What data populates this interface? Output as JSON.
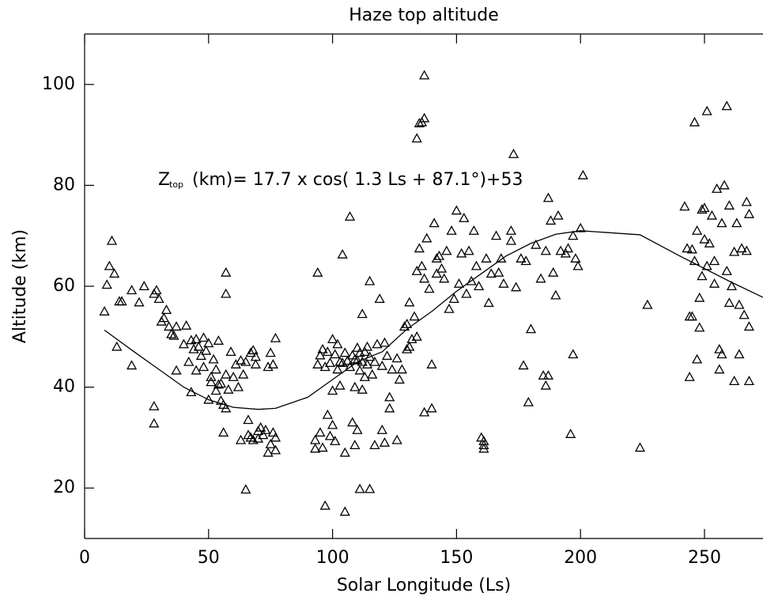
{
  "chart_data": {
    "type": "scatter",
    "title": "Haze top altitude",
    "xlabel": "Solar Longitude (Ls)",
    "ylabel": "Altitude (km)",
    "annotation": {
      "symbol": "Z",
      "subscript": "top",
      "text": " (km)= 17.7 x cos( 1.3 Ls + 87.1°)+53"
    },
    "color": "#000000",
    "xlim": [
      0,
      273.6
    ],
    "ylim": [
      10,
      110
    ],
    "xticks": [
      0,
      50,
      100,
      150,
      200,
      250
    ],
    "yticks": [
      20,
      40,
      60,
      80,
      100
    ],
    "x": [
      8,
      9,
      10,
      11,
      12,
      13,
      14,
      15,
      19,
      19,
      22,
      24,
      28,
      28,
      28,
      29,
      30,
      31,
      32,
      33,
      34,
      35,
      36,
      37,
      37,
      40,
      41,
      42,
      43,
      43,
      44,
      45,
      45,
      46,
      47,
      48,
      48,
      49,
      50,
      50,
      51,
      51,
      52,
      53,
      53,
      54,
      54,
      55,
      55,
      56,
      56,
      57,
      57,
      57,
      57,
      58,
      59,
      60,
      61,
      62,
      63,
      63,
      64,
      65,
      65,
      66,
      66,
      67,
      67,
      68,
      68,
      69,
      69,
      70,
      70,
      71,
      72,
      73,
      74,
      74,
      75,
      75,
      76,
      76,
      77,
      77,
      77,
      93,
      93,
      94,
      94,
      95,
      95,
      96,
      96,
      97,
      97,
      98,
      98,
      99,
      99,
      100,
      100,
      100,
      101,
      101,
      102,
      102,
      103,
      103,
      104,
      104,
      105,
      105,
      105,
      106,
      107,
      107,
      108,
      108,
      109,
      109,
      109,
      110,
      110,
      110,
      111,
      111,
      111,
      112,
      112,
      112,
      113,
      113,
      114,
      114,
      115,
      115,
      115,
      116,
      117,
      117,
      118,
      119,
      120,
      120,
      121,
      121,
      122,
      123,
      123,
      124,
      126,
      126,
      127,
      128,
      129,
      130,
      130,
      131,
      131,
      132,
      133,
      134,
      134,
      135,
      136,
      137,
      137,
      134,
      135,
      136,
      137,
      137,
      138,
      139,
      140,
      140,
      141,
      142,
      142,
      143,
      144,
      145,
      146,
      147,
      148,
      149,
      150,
      151,
      152,
      153,
      154,
      155,
      156,
      157,
      158,
      159,
      160,
      161,
      161,
      161,
      162,
      163,
      164,
      166,
      167,
      168,
      169,
      172,
      172,
      173,
      174,
      176,
      177,
      178,
      179,
      180,
      182,
      184,
      185,
      186,
      186,
      187,
      187,
      188,
      189,
      190,
      191,
      192,
      194,
      195,
      196,
      197,
      197,
      198,
      199,
      200,
      201,
      224,
      227,
      242,
      243,
      244,
      244,
      245,
      245,
      246,
      246,
      247,
      247,
      248,
      248,
      249,
      249,
      250,
      250,
      251,
      251,
      252,
      253,
      254,
      254,
      255,
      256,
      256,
      257,
      257,
      258,
      259,
      259,
      260,
      260,
      261,
      262,
      262,
      263,
      264,
      264,
      265,
      266,
      267,
      267,
      268,
      268,
      268
    ],
    "values": [
      55,
      60.3,
      64,
      69,
      62.5,
      48,
      57,
      57,
      59.2,
      44.3,
      56.8,
      60,
      58.5,
      36.2,
      32.8,
      59.2,
      57.5,
      53,
      53.7,
      55.3,
      52,
      50.5,
      50.2,
      43.3,
      52,
      48.5,
      52.2,
      45,
      39,
      49.3,
      47.5,
      49.5,
      43.3,
      48,
      46.2,
      49.8,
      44,
      47.2,
      48.7,
      37.5,
      41,
      42,
      45.5,
      43.5,
      39.3,
      40.5,
      49.2,
      40.7,
      37.3,
      36.5,
      31,
      62.7,
      58.5,
      42.5,
      35.8,
      39.5,
      47,
      42,
      44.5,
      40,
      45.3,
      29.5,
      42.5,
      45,
      19.7,
      30.5,
      33.5,
      46.8,
      30,
      47.3,
      29.5,
      46,
      44.5,
      29.8,
      31.3,
      32,
      30.5,
      31.5,
      27,
      44,
      28.7,
      46.8,
      44.5,
      31,
      30,
      27.5,
      49.7,
      27.8,
      29.5,
      44.5,
      62.7,
      46.3,
      31,
      47.5,
      28,
      44,
      16.5,
      47,
      34.5,
      30.3,
      44.8,
      49.5,
      39.3,
      32.5,
      46.5,
      29.3,
      48.5,
      43.5,
      45,
      40.3,
      66.3,
      44.8,
      27,
      15.3,
      46.8,
      45.2,
      73.8,
      44,
      46.3,
      33,
      45.5,
      28.5,
      40,
      47.8,
      45.3,
      31.5,
      19.8,
      43.3,
      46.8,
      54.5,
      45,
      39.5,
      47,
      42,
      44.5,
      48,
      19.8,
      61,
      46,
      42.5,
      28.5,
      45,
      48.5,
      57.5,
      44.2,
      31.5,
      29,
      48.8,
      46.2,
      35.8,
      38,
      43.5,
      29.5,
      45.7,
      41.5,
      43.5,
      52,
      47.5,
      52.5,
      48,
      56.8,
      49.5,
      54,
      89.3,
      50,
      92.3,
      92.5,
      101.8,
      93.3,
      63,
      67.5,
      64,
      35,
      61.5,
      69.5,
      59.5,
      35.8,
      44.5,
      72.5,
      65.5,
      62.5,
      66,
      63.5,
      61.5,
      67,
      55.5,
      71,
      57.5,
      75,
      60.5,
      66.5,
      73.5,
      58.5,
      67,
      61,
      71,
      64,
      60,
      30,
      28.5,
      29.3,
      27.8,
      65.5,
      56.7,
      62.5,
      70,
      62.7,
      65.5,
      60.5,
      71,
      69,
      86.2,
      59.8,
      65.5,
      44.3,
      65,
      37,
      51.5,
      68.2,
      61.5,
      42.3,
      40.3,
      67,
      77.5,
      42.3,
      73,
      62.7,
      58.2,
      74,
      67,
      66.5,
      67.5,
      30.7,
      46.5,
      70,
      65.5,
      64,
      71.5,
      82,
      28,
      56.3,
      75.8,
      67.5,
      42,
      54,
      54,
      67.3,
      92.5,
      65,
      45.5,
      71,
      57.7,
      51.8,
      75.2,
      62,
      69.3,
      75.5,
      94.7,
      64,
      68.5,
      74,
      60.5,
      65,
      79.3,
      47.5,
      43.5,
      46.5,
      72.5,
      80,
      63,
      95.7,
      56.7,
      76,
      60,
      66.8,
      41.2,
      72.5,
      56.3,
      46.5,
      67.5,
      54.3,
      76.7,
      67,
      74.3,
      41.2,
      52
    ],
    "fit": {
      "type": "line",
      "color": "#000000",
      "x": [
        8,
        20,
        30,
        40,
        50,
        60,
        70,
        77,
        90,
        100,
        110,
        120,
        130,
        140,
        150,
        160,
        170,
        180,
        190,
        200,
        224,
        240,
        260,
        273.6
      ],
      "values": [
        51.3,
        47,
        43.5,
        40,
        37.5,
        36,
        35.6,
        35.8,
        38,
        41.5,
        45,
        47,
        51.5,
        55,
        59,
        62.5,
        66,
        68.5,
        70.3,
        71,
        70.2,
        66,
        61,
        57.8
      ]
    }
  }
}
